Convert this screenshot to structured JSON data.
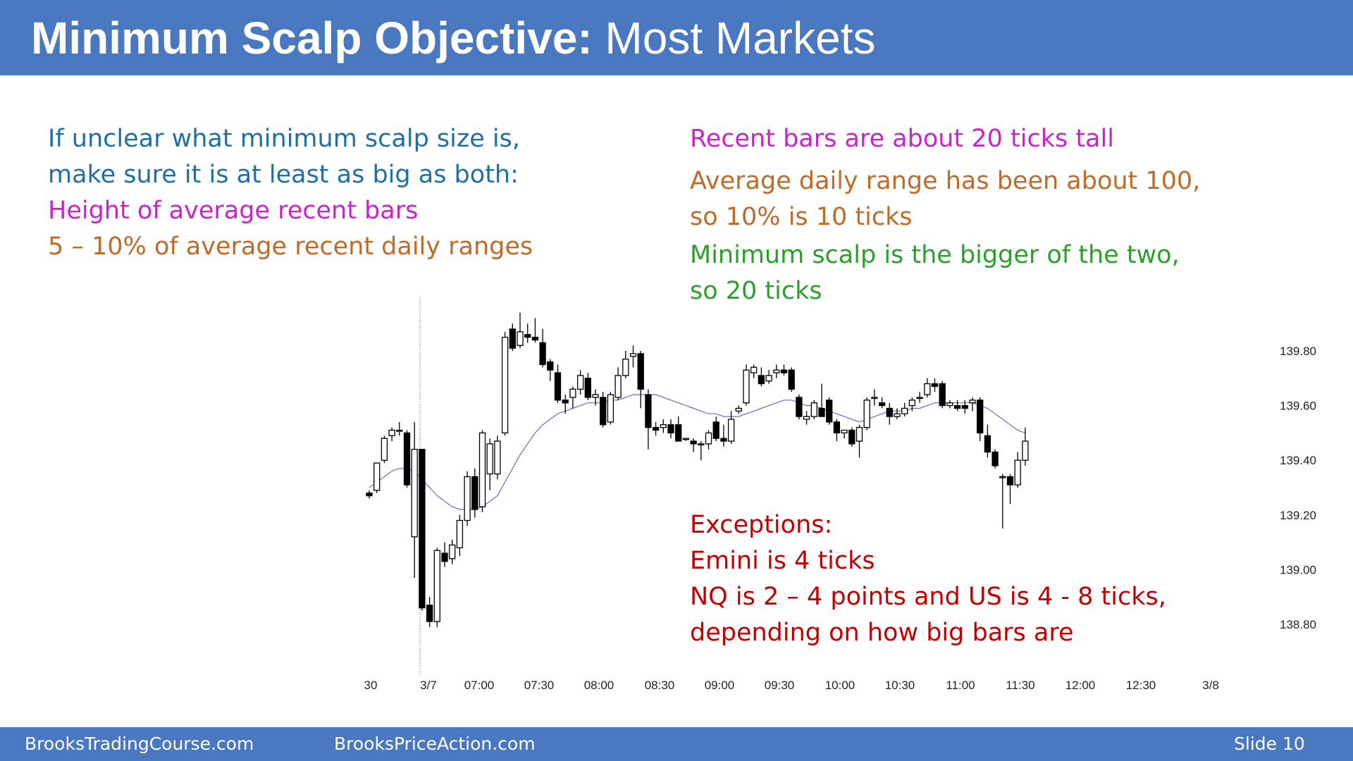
{
  "slide": {
    "title_bold": "Minimum Scalp Objective:",
    "title_rest": "Most Markets",
    "left_text": {
      "intro1": "If unclear what minimum scalp size is,",
      "intro2": "make sure it is at least as big as both:",
      "item1": "Height of average recent bars",
      "item2": "5 – 10% of average recent daily ranges"
    },
    "right_text": {
      "bars": "Recent bars are about 20 ticks tall",
      "range1": "Average daily range has been about 100,",
      "range2": "so 10% is 10 ticks",
      "min1": "Minimum scalp is the bigger of the two,",
      "min2": "so 20 ticks"
    },
    "exceptions": {
      "heading": "Exceptions:",
      "emini": "Emini is 4 ticks",
      "nq1": "NQ is 2 – 4 points and US is 4 - 8 ticks,",
      "nq2": "depending on how big bars are"
    },
    "colors": {
      "header_bg": "#4a78c0",
      "blue_text": "#1f6fa3",
      "magenta_text": "#cc22cc",
      "orange_text": "#c06a2a",
      "green_text": "#2aa02a",
      "red_text": "#c00000",
      "ema_line": "#6b6bc4"
    },
    "footer": {
      "site1": "BrooksTradingCourse.com",
      "site2": "BrooksPriceAction.com",
      "slide_label": "Slide  10"
    }
  },
  "chart_data": {
    "type": "candlestick",
    "title": "",
    "xlabel": "",
    "ylabel": "",
    "ylim": [
      138.65,
      139.97
    ],
    "y_ticks": [
      "139.80",
      "139.60",
      "139.40",
      "139.20",
      "139.00",
      "138.80"
    ],
    "x_ticks": [
      "30",
      "3/7",
      "07:00",
      "07:30",
      "08:00",
      "08:30",
      "09:00",
      "09:30",
      "10:00",
      "10:30",
      "11:00",
      "11:30",
      "12:00",
      "12:30",
      "3/8"
    ],
    "session_break": "3/7",
    "bars_per_x_tick": 6,
    "candles": [
      {
        "o": 139.28,
        "h": 139.29,
        "l": 139.26,
        "c": 139.27
      },
      {
        "o": 139.29,
        "h": 139.39,
        "l": 139.28,
        "c": 139.39
      },
      {
        "o": 139.4,
        "h": 139.49,
        "l": 139.39,
        "c": 139.48
      },
      {
        "o": 139.49,
        "h": 139.52,
        "l": 139.47,
        "c": 139.51
      },
      {
        "o": 139.51,
        "h": 139.54,
        "l": 139.49,
        "c": 139.51
      },
      {
        "o": 139.5,
        "h": 139.51,
        "l": 139.3,
        "c": 139.31
      },
      {
        "o": 139.12,
        "h": 139.54,
        "l": 138.97,
        "c": 139.44
      },
      {
        "o": 139.44,
        "h": 139.44,
        "l": 138.85,
        "c": 138.86
      },
      {
        "o": 138.87,
        "h": 138.9,
        "l": 138.79,
        "c": 138.81
      },
      {
        "o": 138.81,
        "h": 139.08,
        "l": 138.79,
        "c": 139.07
      },
      {
        "o": 139.06,
        "h": 139.1,
        "l": 139.01,
        "c": 139.03
      },
      {
        "o": 139.04,
        "h": 139.11,
        "l": 139.02,
        "c": 139.09
      },
      {
        "o": 139.08,
        "h": 139.2,
        "l": 139.05,
        "c": 139.18
      },
      {
        "o": 139.18,
        "h": 139.36,
        "l": 139.16,
        "c": 139.34
      },
      {
        "o": 139.34,
        "h": 139.37,
        "l": 139.19,
        "c": 139.22
      },
      {
        "o": 139.23,
        "h": 139.51,
        "l": 139.21,
        "c": 139.5
      },
      {
        "o": 139.35,
        "h": 139.48,
        "l": 139.29,
        "c": 139.46
      },
      {
        "o": 139.35,
        "h": 139.49,
        "l": 139.33,
        "c": 139.47
      },
      {
        "o": 139.5,
        "h": 139.87,
        "l": 139.49,
        "c": 139.85
      },
      {
        "o": 139.88,
        "h": 139.9,
        "l": 139.8,
        "c": 139.81
      },
      {
        "o": 139.82,
        "h": 139.94,
        "l": 139.81,
        "c": 139.87
      },
      {
        "o": 139.86,
        "h": 139.9,
        "l": 139.83,
        "c": 139.85
      },
      {
        "o": 139.85,
        "h": 139.92,
        "l": 139.83,
        "c": 139.84
      },
      {
        "o": 139.83,
        "h": 139.88,
        "l": 139.74,
        "c": 139.75
      },
      {
        "o": 139.76,
        "h": 139.77,
        "l": 139.69,
        "c": 139.73
      },
      {
        "o": 139.72,
        "h": 139.75,
        "l": 139.61,
        "c": 139.62
      },
      {
        "o": 139.62,
        "h": 139.64,
        "l": 139.57,
        "c": 139.61
      },
      {
        "o": 139.63,
        "h": 139.67,
        "l": 139.59,
        "c": 139.66
      },
      {
        "o": 139.66,
        "h": 139.73,
        "l": 139.64,
        "c": 139.71
      },
      {
        "o": 139.7,
        "h": 139.72,
        "l": 139.62,
        "c": 139.63
      },
      {
        "o": 139.63,
        "h": 139.66,
        "l": 139.6,
        "c": 139.64
      },
      {
        "o": 139.63,
        "h": 139.65,
        "l": 139.52,
        "c": 139.53
      },
      {
        "o": 139.54,
        "h": 139.65,
        "l": 139.53,
        "c": 139.64
      },
      {
        "o": 139.63,
        "h": 139.74,
        "l": 139.62,
        "c": 139.71
      },
      {
        "o": 139.71,
        "h": 139.8,
        "l": 139.7,
        "c": 139.77
      },
      {
        "o": 139.78,
        "h": 139.82,
        "l": 139.74,
        "c": 139.79
      },
      {
        "o": 139.79,
        "h": 139.8,
        "l": 139.59,
        "c": 139.66
      },
      {
        "o": 139.64,
        "h": 139.66,
        "l": 139.44,
        "c": 139.52
      },
      {
        "o": 139.52,
        "h": 139.54,
        "l": 139.49,
        "c": 139.51
      },
      {
        "o": 139.52,
        "h": 139.55,
        "l": 139.5,
        "c": 139.53
      },
      {
        "o": 139.53,
        "h": 139.55,
        "l": 139.48,
        "c": 139.5
      },
      {
        "o": 139.53,
        "h": 139.56,
        "l": 139.47,
        "c": 139.47
      },
      {
        "o": 139.48,
        "h": 139.48,
        "l": 139.47,
        "c": 139.48
      },
      {
        "o": 139.47,
        "h": 139.48,
        "l": 139.43,
        "c": 139.46
      },
      {
        "o": 139.46,
        "h": 139.47,
        "l": 139.4,
        "c": 139.46
      },
      {
        "o": 139.46,
        "h": 139.51,
        "l": 139.44,
        "c": 139.5
      },
      {
        "o": 139.54,
        "h": 139.56,
        "l": 139.47,
        "c": 139.48
      },
      {
        "o": 139.48,
        "h": 139.53,
        "l": 139.45,
        "c": 139.47
      },
      {
        "o": 139.47,
        "h": 139.58,
        "l": 139.46,
        "c": 139.55
      },
      {
        "o": 139.58,
        "h": 139.6,
        "l": 139.57,
        "c": 139.59
      },
      {
        "o": 139.61,
        "h": 139.75,
        "l": 139.6,
        "c": 139.73
      },
      {
        "o": 139.72,
        "h": 139.75,
        "l": 139.7,
        "c": 139.74
      },
      {
        "o": 139.71,
        "h": 139.74,
        "l": 139.67,
        "c": 139.68
      },
      {
        "o": 139.69,
        "h": 139.73,
        "l": 139.68,
        "c": 139.71
      },
      {
        "o": 139.72,
        "h": 139.75,
        "l": 139.7,
        "c": 139.73
      },
      {
        "o": 139.73,
        "h": 139.75,
        "l": 139.71,
        "c": 139.72
      },
      {
        "o": 139.73,
        "h": 139.74,
        "l": 139.65,
        "c": 139.66
      },
      {
        "o": 139.63,
        "h": 139.64,
        "l": 139.55,
        "c": 139.56
      },
      {
        "o": 139.55,
        "h": 139.58,
        "l": 139.53,
        "c": 139.56
      },
      {
        "o": 139.56,
        "h": 139.62,
        "l": 139.55,
        "c": 139.61
      },
      {
        "o": 139.59,
        "h": 139.68,
        "l": 139.56,
        "c": 139.56
      },
      {
        "o": 139.62,
        "h": 139.63,
        "l": 139.53,
        "c": 139.54
      },
      {
        "o": 139.54,
        "h": 139.55,
        "l": 139.47,
        "c": 139.5
      },
      {
        "o": 139.5,
        "h": 139.51,
        "l": 139.48,
        "c": 139.51
      },
      {
        "o": 139.51,
        "h": 139.52,
        "l": 139.45,
        "c": 139.46
      },
      {
        "o": 139.47,
        "h": 139.53,
        "l": 139.41,
        "c": 139.52
      },
      {
        "o": 139.52,
        "h": 139.63,
        "l": 139.51,
        "c": 139.62
      },
      {
        "o": 139.63,
        "h": 139.66,
        "l": 139.6,
        "c": 139.63
      },
      {
        "o": 139.61,
        "h": 139.63,
        "l": 139.59,
        "c": 139.6
      },
      {
        "o": 139.59,
        "h": 139.61,
        "l": 139.53,
        "c": 139.56
      },
      {
        "o": 139.56,
        "h": 139.59,
        "l": 139.55,
        "c": 139.57
      },
      {
        "o": 139.57,
        "h": 139.61,
        "l": 139.56,
        "c": 139.59
      },
      {
        "o": 139.6,
        "h": 139.63,
        "l": 139.58,
        "c": 139.62
      },
      {
        "o": 139.63,
        "h": 139.65,
        "l": 139.61,
        "c": 139.63
      },
      {
        "o": 139.64,
        "h": 139.7,
        "l": 139.63,
        "c": 139.68
      },
      {
        "o": 139.68,
        "h": 139.7,
        "l": 139.65,
        "c": 139.67
      },
      {
        "o": 139.68,
        "h": 139.69,
        "l": 139.59,
        "c": 139.6
      },
      {
        "o": 139.6,
        "h": 139.62,
        "l": 139.59,
        "c": 139.61
      },
      {
        "o": 139.6,
        "h": 139.62,
        "l": 139.58,
        "c": 139.59
      },
      {
        "o": 139.6,
        "h": 139.62,
        "l": 139.57,
        "c": 139.59
      },
      {
        "o": 139.61,
        "h": 139.63,
        "l": 139.58,
        "c": 139.62
      },
      {
        "o": 139.62,
        "h": 139.63,
        "l": 139.47,
        "c": 139.5
      },
      {
        "o": 139.49,
        "h": 139.53,
        "l": 139.41,
        "c": 139.43
      },
      {
        "o": 139.43,
        "h": 139.44,
        "l": 139.37,
        "c": 139.38
      },
      {
        "o": 139.34,
        "h": 139.35,
        "l": 139.15,
        "c": 139.34
      },
      {
        "o": 139.34,
        "h": 139.35,
        "l": 139.24,
        "c": 139.31
      },
      {
        "o": 139.31,
        "h": 139.43,
        "l": 139.3,
        "c": 139.4
      },
      {
        "o": 139.4,
        "h": 139.52,
        "l": 139.38,
        "c": 139.47
      }
    ],
    "ema": [
      139.3,
      139.32,
      139.34,
      139.36,
      139.37,
      139.37,
      139.36,
      139.33,
      139.3,
      139.27,
      139.25,
      139.23,
      139.22,
      139.22,
      139.22,
      139.23,
      139.25,
      139.27,
      139.32,
      139.37,
      139.42,
      139.46,
      139.5,
      139.53,
      139.55,
      139.57,
      139.58,
      139.59,
      139.6,
      139.61,
      139.61,
      139.61,
      139.62,
      139.62,
      139.63,
      139.64,
      139.64,
      139.64,
      139.64,
      139.63,
      139.62,
      139.61,
      139.6,
      139.59,
      139.58,
      139.57,
      139.57,
      139.56,
      139.56,
      139.56,
      139.57,
      139.58,
      139.59,
      139.6,
      139.61,
      139.62,
      139.62,
      139.61,
      139.6,
      139.6,
      139.59,
      139.58,
      139.57,
      139.56,
      139.55,
      139.54,
      139.55,
      139.56,
      139.57,
      139.58,
      139.58,
      139.58,
      139.59,
      139.59,
      139.6,
      139.61,
      139.61,
      139.61,
      139.61,
      139.61,
      139.61,
      139.6,
      139.59,
      139.57,
      139.55,
      139.53,
      139.51,
      139.5
    ]
  }
}
